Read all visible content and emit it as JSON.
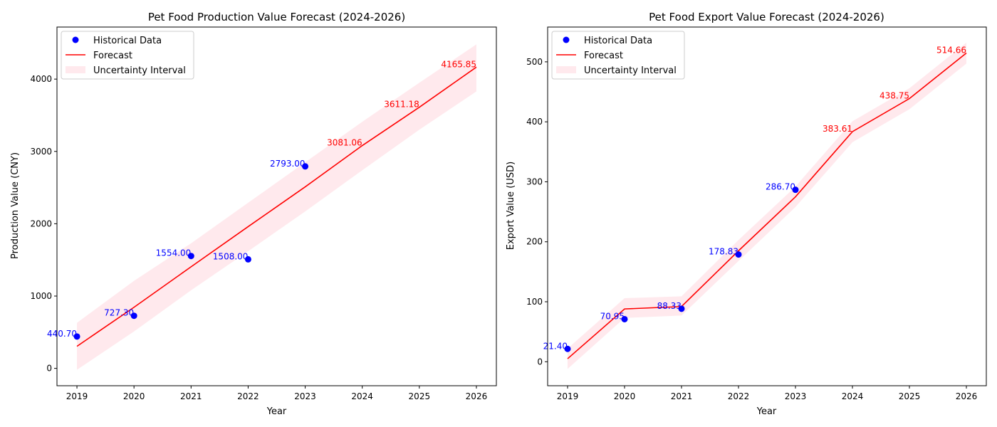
{
  "chart_data": [
    {
      "type": "line",
      "title": "Pet Food Production Value Forecast (2024-2026)",
      "xlabel": "Year",
      "ylabel": "Production Value (CNY)",
      "xlim": [
        2018.65,
        2026.35
      ],
      "ylim": [
        -240,
        4720
      ],
      "xticks": [
        2019,
        2020,
        2021,
        2022,
        2023,
        2024,
        2025,
        2026
      ],
      "yticks": [
        0,
        1000,
        2000,
        3000,
        4000
      ],
      "grid": false,
      "legend_position": "top-left",
      "legend": {
        "historical": "Historical Data",
        "forecast": "Forecast",
        "interval": "Uncertainty Interval"
      },
      "historical": {
        "x": [
          2019,
          2020,
          2021,
          2022,
          2023
        ],
        "y": [
          440.7,
          727.3,
          1554.0,
          1508.0,
          2793.0
        ],
        "labels": [
          "440.70",
          "727.30",
          "1554.00",
          "1508.00",
          "2793.00"
        ],
        "color": "#0000ff"
      },
      "forecast": {
        "x": [
          2019,
          2020,
          2021,
          2022,
          2023,
          2024,
          2025,
          2026
        ],
        "y": [
          305,
          845,
          1405,
          1960,
          2510,
          3081.06,
          3611.18,
          4165.85
        ],
        "color": "#ff0000"
      },
      "forecast_labels": {
        "x": [
          2024,
          2025,
          2026
        ],
        "y": [
          3081.06,
          3611.18,
          4165.85
        ],
        "labels": [
          "3081.06",
          "3611.18",
          "4165.85"
        ]
      },
      "interval": {
        "x": [
          2019,
          2020,
          2021,
          2022,
          2023,
          2024,
          2025,
          2026
        ],
        "lower": [
          -20,
          510,
          1080,
          1620,
          2170,
          2740,
          3300,
          3830
        ],
        "upper": [
          630,
          1210,
          1730,
          2290,
          2850,
          3410,
          3950,
          4480
        ],
        "color": "#ffc0cb"
      }
    },
    {
      "type": "line",
      "title": "Pet Food Export Value Forecast (2024-2026)",
      "xlabel": "Year",
      "ylabel": "Export Value (USD)",
      "xlim": [
        2018.65,
        2026.35
      ],
      "ylim": [
        -40,
        558
      ],
      "xticks": [
        2019,
        2020,
        2021,
        2022,
        2023,
        2024,
        2025,
        2026
      ],
      "yticks": [
        0,
        100,
        200,
        300,
        400,
        500
      ],
      "grid": false,
      "legend_position": "top-left",
      "legend": {
        "historical": "Historical Data",
        "forecast": "Forecast",
        "interval": "Uncertainty Interval"
      },
      "historical": {
        "x": [
          2019,
          2020,
          2021,
          2022,
          2023
        ],
        "y": [
          21.4,
          70.95,
          88.33,
          178.83,
          286.7
        ],
        "labels": [
          "21.40",
          "70.95",
          "88.33",
          "178.83",
          "286.70"
        ],
        "color": "#0000ff"
      },
      "forecast": {
        "x": [
          2019,
          2020,
          2021,
          2022,
          2023,
          2024,
          2025,
          2026
        ],
        "y": [
          5,
          88,
          92,
          185,
          275,
          383.61,
          438.75,
          514.66
        ],
        "color": "#ff0000"
      },
      "forecast_labels": {
        "x": [
          2024,
          2025,
          2026
        ],
        "y": [
          383.61,
          438.75,
          514.66
        ],
        "labels": [
          "383.61",
          "438.75",
          "514.66"
        ]
      },
      "interval": {
        "x": [
          2019,
          2020,
          2021,
          2022,
          2023,
          2024,
          2025,
          2026
        ],
        "lower": [
          -12,
          73,
          77,
          168,
          258,
          366,
          421,
          497
        ],
        "upper": [
          22,
          106,
          109,
          203,
          292,
          401,
          456,
          532
        ],
        "color": "#ffc0cb"
      }
    }
  ]
}
